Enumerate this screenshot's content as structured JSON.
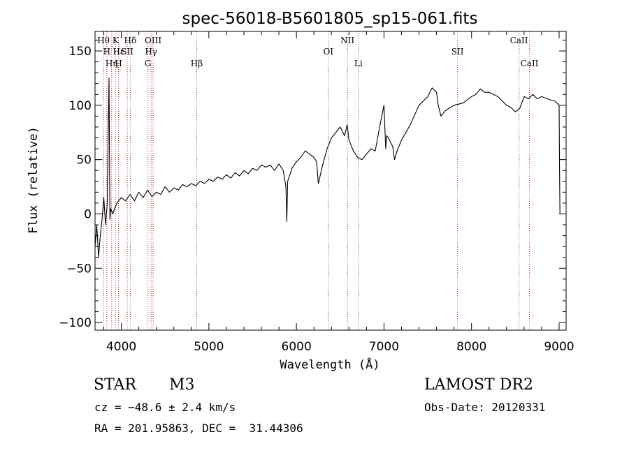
{
  "chart_data": {
    "type": "line",
    "title": "spec-56018-B5601805_sp15-061.fits",
    "xlabel": "Wavelength (Å)",
    "ylabel": "Flux (relative)",
    "xlim": [
      3700,
      9080
    ],
    "ylim": [
      -107,
      168
    ],
    "x_ticks": [
      4000,
      5000,
      6000,
      7000,
      8000,
      9000
    ],
    "y_ticks": [
      -100,
      -50,
      0,
      50,
      100,
      150
    ],
    "grid": false,
    "series": [
      {
        "x": [
          3700,
          3720,
          3740,
          3760,
          3780,
          3800,
          3820,
          3840,
          3860,
          3870,
          3880,
          3900,
          3950,
          4000,
          4050,
          4100,
          4150,
          4200,
          4250,
          4300,
          4350,
          4400,
          4450,
          4500,
          4550,
          4600,
          4650,
          4700,
          4750,
          4800,
          4850,
          4900,
          4950,
          5000,
          5050,
          5100,
          5150,
          5200,
          5250,
          5300,
          5350,
          5400,
          5450,
          5500,
          5550,
          5600,
          5650,
          5700,
          5750,
          5800,
          5850,
          5880,
          5890,
          5900,
          5950,
          6000,
          6050,
          6100,
          6150,
          6200,
          6230,
          6250,
          6300,
          6350,
          6400,
          6450,
          6500,
          6550,
          6580,
          6600,
          6650,
          6700,
          6750,
          6800,
          6850,
          6900,
          6950,
          7000,
          7020,
          7030,
          7050,
          7100,
          7120,
          7150,
          7200,
          7300,
          7400,
          7500,
          7550,
          7600,
          7620,
          7650,
          7700,
          7800,
          7900,
          8000,
          8050,
          8100,
          8150,
          8200,
          8300,
          8400,
          8450,
          8500,
          8550,
          8600,
          8650,
          8700,
          8750,
          8800,
          8900,
          8950,
          9000,
          9005,
          9010
        ],
        "y": [
          -30,
          -10,
          -40,
          -20,
          -5,
          15,
          -10,
          10,
          125,
          -5,
          5,
          0,
          10,
          15,
          12,
          18,
          12,
          20,
          15,
          22,
          16,
          20,
          18,
          25,
          20,
          24,
          22,
          27,
          25,
          28,
          26,
          30,
          28,
          32,
          30,
          34,
          32,
          36,
          33,
          38,
          35,
          40,
          37,
          42,
          40,
          45,
          43,
          45,
          40,
          46,
          40,
          25,
          -7,
          30,
          42,
          48,
          52,
          58,
          55,
          52,
          48,
          28,
          45,
          60,
          70,
          75,
          80,
          72,
          82,
          68,
          58,
          52,
          50,
          55,
          60,
          58,
          80,
          100,
          60,
          72,
          70,
          62,
          50,
          58,
          68,
          82,
          100,
          108,
          116,
          112,
          100,
          90,
          95,
          100,
          102,
          108,
          110,
          115,
          112,
          112,
          108,
          100,
          98,
          94,
          97,
          108,
          106,
          110,
          106,
          108,
          105,
          104,
          100,
          40,
          0
        ]
      }
    ],
    "spectral_lines": [
      {
        "label": "Hθ",
        "x": 3797,
        "row": 1
      },
      {
        "label": "H",
        "x": 3835,
        "row": 2
      },
      {
        "label": "Hη",
        "x": 3889,
        "row": 3
      },
      {
        "label": "K",
        "x": 3934,
        "row": 1
      },
      {
        "label": "H",
        "x": 3968,
        "row": 3
      },
      {
        "label": "Hε",
        "x": 3970,
        "row": 2
      },
      {
        "label": "SII",
        "x": 4068,
        "row": 2
      },
      {
        "label": "Hδ",
        "x": 4102,
        "row": 1
      },
      {
        "label": "G",
        "x": 4304,
        "row": 3
      },
      {
        "label": "OIII",
        "x": 4363,
        "row": 1
      },
      {
        "label": "Hγ",
        "x": 4340,
        "row": 2
      },
      {
        "label": "Hβ",
        "x": 4861,
        "row": 3
      },
      {
        "label": "OI",
        "x": 6364,
        "row": 2
      },
      {
        "label": "NII",
        "x": 6583,
        "row": 1
      },
      {
        "label": "Li",
        "x": 6708,
        "row": 3
      },
      {
        "label": "SII",
        "x": 7840,
        "row": 2
      },
      {
        "label": "CaII",
        "x": 8542,
        "row": 1
      },
      {
        "label": "CaII",
        "x": 8662,
        "row": 3
      }
    ]
  },
  "info": {
    "class_label": "STAR",
    "subclass": "M3",
    "survey": "LAMOST DR2",
    "cz": "cz = −48.6 ± 2.4 km/s",
    "obs_date": "Obs-Date: 20120331",
    "coords": "RA = 201.95863, DEC =  31.44306"
  }
}
